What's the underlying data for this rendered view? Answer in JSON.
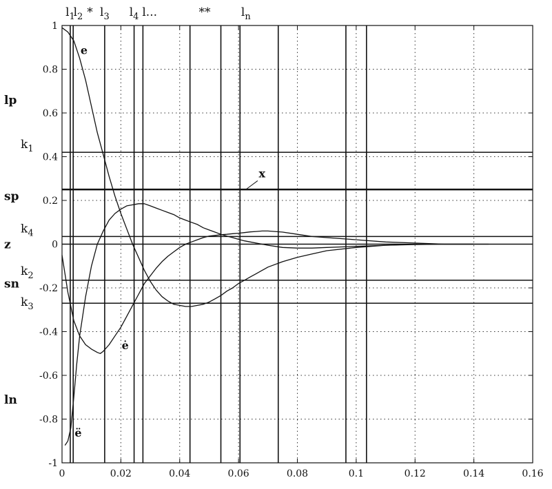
{
  "chart_data": {
    "type": "line",
    "title": "",
    "xlabel": "",
    "ylabel": "",
    "xlim": [
      0,
      0.16
    ],
    "ylim": [
      -1,
      1
    ],
    "grid": true,
    "x_ticks": [
      "0",
      "0.02",
      "0.04",
      "0.06",
      "0.08",
      "0.1",
      "0.12",
      "0.14",
      "0.16"
    ],
    "y_ticks": [
      "-1",
      "-0.8",
      "-0.6",
      "-0.4",
      "-0.2",
      "0",
      "0.2",
      "0.4",
      "0.6",
      "0.8",
      "1"
    ],
    "y_tick_values": [
      -1,
      -0.8,
      -0.6,
      -0.4,
      -0.2,
      0,
      0.2,
      0.4,
      0.6,
      0.8,
      1
    ],
    "x_tick_values": [
      0,
      0.02,
      0.04,
      0.06,
      0.08,
      0.1,
      0.12,
      0.14,
      0.16
    ],
    "side_labels": [
      {
        "text": "lp",
        "y": 0.66
      },
      {
        "text": "sp",
        "y": 0.22
      },
      {
        "text": "z",
        "y": 0.0
      },
      {
        "text": "sn",
        "y": -0.18
      },
      {
        "text": "ln",
        "y": -0.71
      }
    ],
    "horizontal_levels": [
      {
        "name": "k1",
        "label": "k",
        "sub": "1",
        "y": 0.42,
        "weight": "thin"
      },
      {
        "name": "sp",
        "label": "",
        "sub": "",
        "y": 0.25,
        "weight": "thick"
      },
      {
        "name": "k4",
        "label": "k",
        "sub": "4",
        "y": 0.035,
        "weight": "thin"
      },
      {
        "name": "k2",
        "label": "k",
        "sub": "2",
        "y": -0.165,
        "weight": "thin"
      },
      {
        "name": "k3",
        "label": "k",
        "sub": "3",
        "y": -0.27,
        "weight": "thin"
      }
    ],
    "vertical_lines": [
      0.0028,
      0.0038,
      0.0145,
      0.0245,
      0.0275,
      0.0435,
      0.054,
      0.0605,
      0.0735,
      0.0965,
      0.1035
    ],
    "top_labels": [
      {
        "text": "l",
        "sub": "1",
        "x": 0.0028
      },
      {
        "text": "l",
        "sub": "2",
        "x": 0.0055
      },
      {
        "text": "*",
        "sub": "",
        "x": 0.0095
      },
      {
        "text": "l",
        "sub": "3",
        "x": 0.0145
      },
      {
        "text": "l",
        "sub": "4",
        "x": 0.0245
      },
      {
        "text": "l...",
        "sub": "",
        "x": 0.0298
      },
      {
        "text": "**",
        "sub": "",
        "x": 0.0485
      },
      {
        "text": "l",
        "sub": "n",
        "x": 0.0625
      }
    ],
    "series": [
      {
        "name": "e",
        "x": [
          0,
          0.002,
          0.004,
          0.006,
          0.008,
          0.01,
          0.012,
          0.014,
          0.016,
          0.018,
          0.02,
          0.022,
          0.024,
          0.026,
          0.028,
          0.03,
          0.032,
          0.034,
          0.036,
          0.038,
          0.04,
          0.042,
          0.044,
          0.046,
          0.048,
          0.05,
          0.052,
          0.054,
          0.056,
          0.058,
          0.06,
          0.062,
          0.064,
          0.066,
          0.068,
          0.07,
          0.075,
          0.08,
          0.085,
          0.09,
          0.1,
          0.11,
          0.12,
          0.13,
          0.14
        ],
        "y": [
          0.99,
          0.97,
          0.93,
          0.85,
          0.75,
          0.63,
          0.51,
          0.41,
          0.31,
          0.22,
          0.14,
          0.07,
          0.0,
          -0.06,
          -0.12,
          -0.17,
          -0.21,
          -0.24,
          -0.26,
          -0.275,
          -0.28,
          -0.285,
          -0.285,
          -0.28,
          -0.275,
          -0.265,
          -0.25,
          -0.235,
          -0.215,
          -0.2,
          -0.18,
          -0.165,
          -0.15,
          -0.135,
          -0.12,
          -0.105,
          -0.08,
          -0.06,
          -0.045,
          -0.03,
          -0.015,
          -0.005,
          0.0,
          0.0,
          0.0
        ]
      },
      {
        "name": "ė",
        "x": [
          0,
          0.002,
          0.004,
          0.006,
          0.008,
          0.01,
          0.012,
          0.013,
          0.014,
          0.016,
          0.018,
          0.02,
          0.022,
          0.024,
          0.026,
          0.028,
          0.03,
          0.032,
          0.034,
          0.036,
          0.038,
          0.04,
          0.042,
          0.044,
          0.046,
          0.048,
          0.05,
          0.052,
          0.054,
          0.056,
          0.058,
          0.06,
          0.062,
          0.064,
          0.066,
          0.068,
          0.07,
          0.075,
          0.08,
          0.085,
          0.09,
          0.1,
          0.11,
          0.12,
          0.13,
          0.14
        ],
        "y": [
          -0.05,
          -0.22,
          -0.35,
          -0.42,
          -0.46,
          -0.48,
          -0.495,
          -0.5,
          -0.49,
          -0.46,
          -0.42,
          -0.38,
          -0.33,
          -0.28,
          -0.23,
          -0.18,
          -0.145,
          -0.11,
          -0.08,
          -0.055,
          -0.035,
          -0.015,
          0.0,
          0.01,
          0.02,
          0.03,
          0.037,
          0.04,
          0.043,
          0.045,
          0.048,
          0.05,
          0.053,
          0.056,
          0.058,
          0.06,
          0.06,
          0.055,
          0.045,
          0.035,
          0.03,
          0.02,
          0.01,
          0.005,
          0.0,
          0.0
        ]
      },
      {
        "name": "ë",
        "x": [
          0.001,
          0.002,
          0.003,
          0.004,
          0.005,
          0.006,
          0.008,
          0.01,
          0.012,
          0.014,
          0.016,
          0.018,
          0.02,
          0.022,
          0.024,
          0.026,
          0.028,
          0.03,
          0.032,
          0.034,
          0.036,
          0.038,
          0.04,
          0.042,
          0.044,
          0.046,
          0.048,
          0.05,
          0.052,
          0.054,
          0.056,
          0.058,
          0.06,
          0.062,
          0.064,
          0.066,
          0.068,
          0.07,
          0.075,
          0.08,
          0.085,
          0.09,
          0.1,
          0.11,
          0.12,
          0.13,
          0.14,
          0.145
        ],
        "y": [
          -0.92,
          -0.9,
          -0.84,
          -0.7,
          -0.55,
          -0.42,
          -0.24,
          -0.1,
          0.0,
          0.06,
          0.11,
          0.14,
          0.16,
          0.175,
          0.18,
          0.185,
          0.185,
          0.175,
          0.165,
          0.155,
          0.145,
          0.135,
          0.12,
          0.11,
          0.1,
          0.09,
          0.075,
          0.065,
          0.055,
          0.045,
          0.037,
          0.03,
          0.022,
          0.015,
          0.01,
          0.005,
          0.0,
          -0.005,
          -0.015,
          -0.018,
          -0.018,
          -0.015,
          -0.01,
          -0.005,
          -0.002,
          0.0,
          0.0,
          0.0
        ]
      }
    ],
    "curve_labels": [
      {
        "text": "e",
        "x": 0.0075,
        "y": 0.87
      },
      {
        "text": "ė",
        "x": 0.0215,
        "y": -0.48
      },
      {
        "text": "ë",
        "x": 0.0055,
        "y": -0.88
      },
      {
        "text": "x",
        "x": 0.068,
        "y": 0.305
      }
    ]
  }
}
